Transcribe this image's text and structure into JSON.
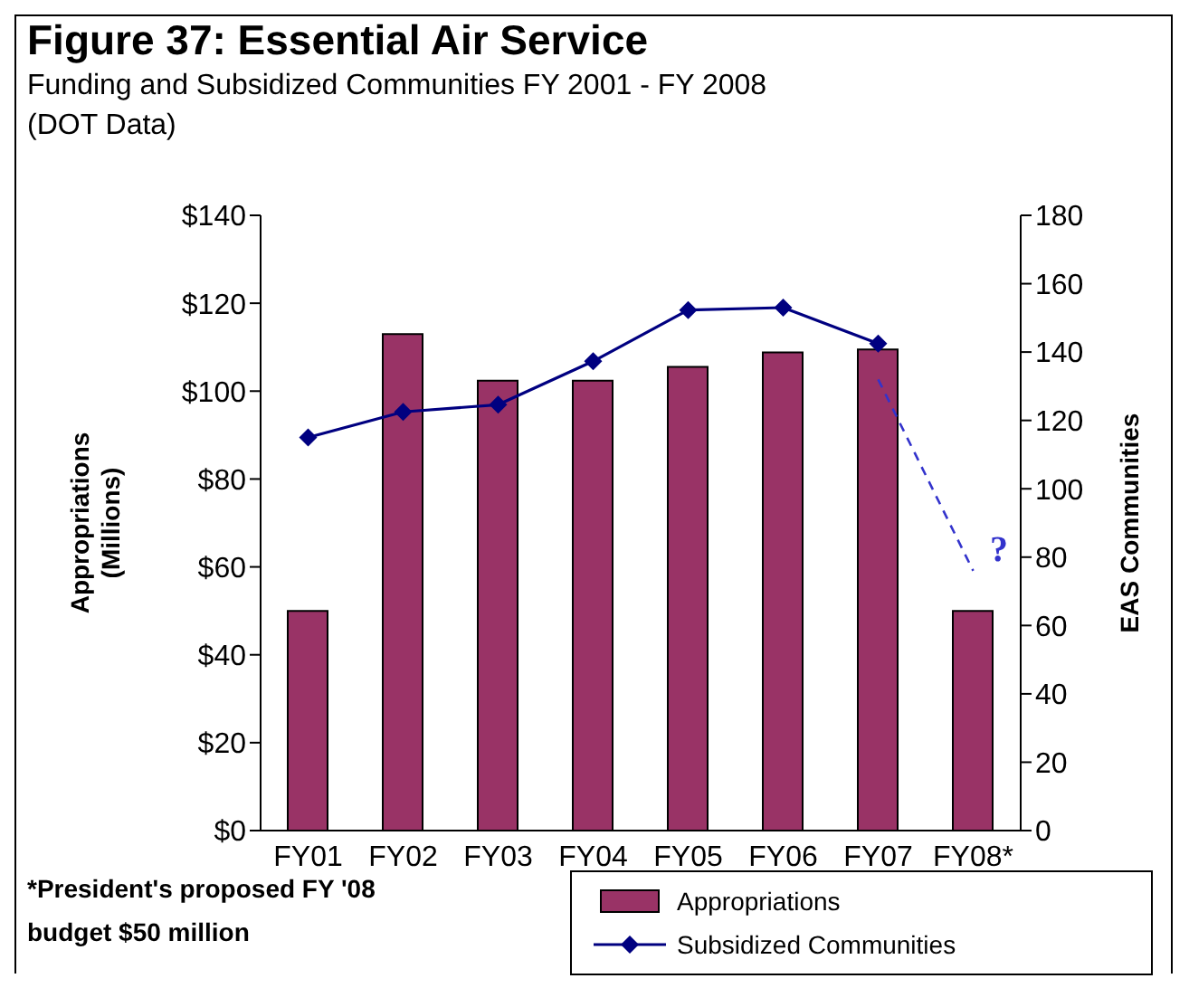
{
  "chart_data": {
    "type": "bar",
    "title": "Figure 37: Essential Air Service",
    "subtitle": "Funding and Subsidized Communities FY 2001 - FY 2008\n(DOT Data)",
    "categories": [
      "FY01",
      "FY02",
      "FY03",
      "FY04",
      "FY05",
      "FY06",
      "FY07",
      "FY08*"
    ],
    "series": [
      {
        "name": "Appropriations",
        "color": "#993366",
        "values": [
          50,
          113,
          102.4,
          102.4,
          105.5,
          108.8,
          109.5,
          50
        ]
      },
      {
        "name": "Subsidized Communities",
        "type": "line",
        "axis": "y2",
        "color": "#000080",
        "marker": "diamond",
        "values": [
          115,
          122.5,
          124.6,
          137.3,
          152.3,
          153,
          142.5,
          null
        ]
      },
      {
        "type": "line",
        "axis": "y2",
        "color": "#3333cc",
        "line_style": "dashed",
        "marker": "none",
        "values": [
          null,
          null,
          null,
          null,
          null,
          null,
          132,
          76
        ]
      }
    ],
    "ylabel": "Appropriations\n(Millions)",
    "y2label": "EAS Communities",
    "ylim": [
      0,
      140
    ],
    "yticks": [
      {
        "value": 0,
        "label": "$0"
      },
      {
        "value": 20,
        "label": "$20"
      },
      {
        "value": 40,
        "label": "$40"
      },
      {
        "value": 60,
        "label": "$60"
      },
      {
        "value": 80,
        "label": "$80"
      },
      {
        "value": 100,
        "label": "$100"
      },
      {
        "value": 120,
        "label": "$120"
      },
      {
        "value": 140,
        "label": "$140"
      }
    ],
    "y2lim": [
      0,
      180
    ],
    "y2ticks": [
      0,
      20,
      40,
      60,
      80,
      100,
      120,
      140,
      160,
      180
    ],
    "grid": false,
    "legend": "bottom right",
    "annotations": [
      "?",
      "*President's proposed FY '08 budget $50 million"
    ]
  }
}
